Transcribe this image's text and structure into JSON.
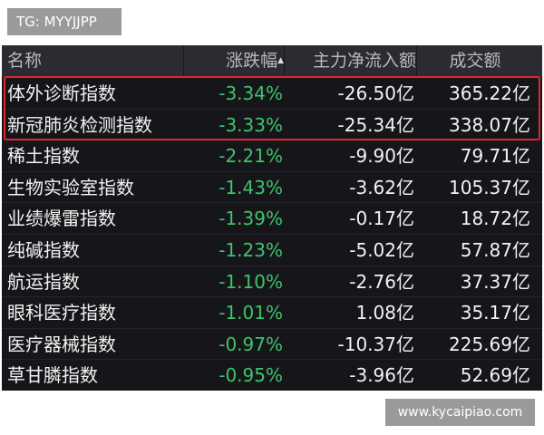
{
  "badge": "TG: MYYJJPP",
  "table": {
    "header": [
      "名称",
      "涨跌幅",
      "主力净流入额",
      "成交额"
    ],
    "rows": [
      [
        "体外诊断指数",
        "-3.34%",
        "-26.50亿",
        "365.22亿"
      ],
      [
        "新冠肺炎检测指数",
        "-3.33%",
        "-25.34亿",
        "338.07亿"
      ],
      [
        "稀土指数",
        "-2.21%",
        "-9.90亿",
        "79.71亿"
      ],
      [
        "生物实验室指数",
        "-1.43%",
        "-3.62亿",
        "105.37亿"
      ],
      [
        "业绩爆雷指数",
        "-1.39%",
        "-0.17亿",
        "18.72亿"
      ],
      [
        "纯碱指数",
        "-1.23%",
        "-5.02亿",
        "57.87亿"
      ],
      [
        "航运指数",
        "-1.10%",
        "-2.76亿",
        "37.37亿"
      ],
      [
        "眼科医疗指数",
        "-1.01%",
        "1.08亿",
        "35.17亿"
      ],
      [
        "医疗器械指数",
        "-0.97%",
        "-10.37亿",
        "225.69亿"
      ],
      [
        "草甘膦指数",
        "-0.95%",
        "-3.96亿",
        "52.69亿"
      ]
    ]
  },
  "watermark": "www.kycaipiao.com"
}
